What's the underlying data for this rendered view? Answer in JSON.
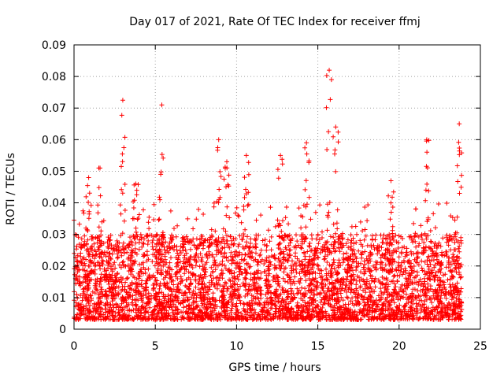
{
  "chart_data": {
    "type": "scatter",
    "title": "Day 017 of 2021, Rate Of TEC Index for receiver ffmj",
    "xlabel": "GPS time / hours",
    "ylabel": "ROTI / TECUs",
    "xlim": [
      0,
      25
    ],
    "ylim": [
      0,
      0.09
    ],
    "xticks": [
      "0",
      "5",
      "10",
      "15",
      "20",
      "25"
    ],
    "yticks": [
      "0",
      "0.01",
      "0.02",
      "0.03",
      "0.04",
      "0.05",
      "0.06",
      "0.07",
      "0.08",
      "0.09"
    ],
    "grid": true,
    "marker": "+",
    "color": "#ff0000",
    "series": [
      {
        "name": "ROTI",
        "x_range_hours": [
          0,
          23.85
        ],
        "typical_range": [
          0.003,
          0.03
        ],
        "peaks": [
          {
            "x": 0.9,
            "y": 0.048
          },
          {
            "x": 1.6,
            "y": 0.051
          },
          {
            "x": 3.0,
            "y": 0.0725
          },
          {
            "x": 3.8,
            "y": 0.046
          },
          {
            "x": 5.4,
            "y": 0.071
          },
          {
            "x": 8.9,
            "y": 0.06
          },
          {
            "x": 9.4,
            "y": 0.053
          },
          {
            "x": 10.6,
            "y": 0.055
          },
          {
            "x": 12.7,
            "y": 0.055
          },
          {
            "x": 14.3,
            "y": 0.059
          },
          {
            "x": 15.7,
            "y": 0.082
          },
          {
            "x": 16.1,
            "y": 0.064
          },
          {
            "x": 19.5,
            "y": 0.047
          },
          {
            "x": 21.7,
            "y": 0.06
          },
          {
            "x": 23.7,
            "y": 0.065
          }
        ]
      }
    ]
  }
}
